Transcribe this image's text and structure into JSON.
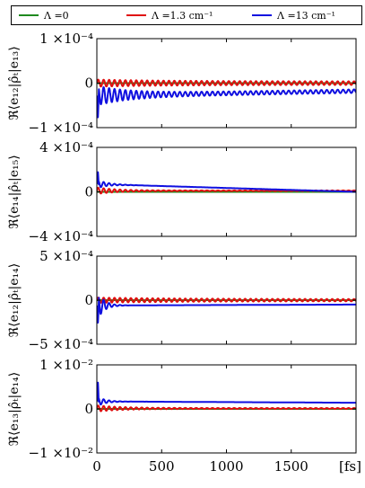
{
  "chart_data": {
    "type": "line",
    "x_unit": "[fs]",
    "xlim": [
      0,
      2000
    ],
    "x_ticks": [
      "0",
      "500",
      "1000",
      "1500"
    ],
    "x_tick_values": [
      0,
      500,
      1000,
      1500
    ],
    "legend": {
      "placement": "top",
      "entries": [
        {
          "label": "Λ =0",
          "color": "#1f8a1f"
        },
        {
          "label": "Λ =1.3 cm⁻¹",
          "color": "#e01010"
        },
        {
          "label": "Λ =13 cm⁻¹",
          "color": "#1010e0"
        }
      ]
    },
    "panels": [
      {
        "ylabel": "ℜ⟨e₁₂|ρ̂ₜ|e₁₃⟩",
        "ylim": [
          -0.0001,
          0.0001
        ],
        "y_ticks": [
          "1 ×10⁻⁴",
          "0",
          "−1 ×10⁻⁴"
        ],
        "y_tick_values": [
          0.0001,
          0,
          -0.0001
        ],
        "series": [
          {
            "name": "Λ =0",
            "x": [
              0,
              2000
            ],
            "y": [
              0,
              0
            ]
          },
          {
            "name": "Λ =1.3 cm⁻¹",
            "osc": {
              "base": 0,
              "amp0": 8e-06,
              "amp_end": 4e-06,
              "tau": 600,
              "period": 42
            }
          },
          {
            "name": "Λ =13 cm⁻¹",
            "osc": {
              "base_start": -2.8e-05,
              "base_end": -1.8e-05,
              "amp0": 2.2e-05,
              "amp_end": 4e-06,
              "tau": 250,
              "period": 42,
              "spike": -5e-05
            }
          }
        ]
      },
      {
        "ylabel": "ℜ⟨e₁₄|ρ̂ₜ|e₁₅⟩",
        "ylim": [
          -0.0004,
          0.0004
        ],
        "y_ticks": [
          "4 ×10⁻⁴",
          "0",
          "−4 ×10⁻⁴"
        ],
        "y_tick_values": [
          0.0004,
          0,
          -0.0004
        ],
        "series": [
          {
            "name": "Λ =0",
            "x": [
              0,
              2000
            ],
            "y": [
              0,
              0
            ]
          },
          {
            "name": "Λ =1.3 cm⁻¹",
            "osc": {
              "base": 1e-05,
              "amp0": 3e-05,
              "amp_end": 3e-06,
              "tau": 150,
              "period": 42
            }
          },
          {
            "name": "Λ =13 cm⁻¹",
            "osc": {
              "base_start": 7e-05,
              "base_end": 0.0,
              "amp0": 4e-05,
              "amp_end": 0.0,
              "tau": 80,
              "period": 42,
              "spike": 0.00011
            }
          }
        ]
      },
      {
        "ylabel": "ℜ⟨e₁₂|ρ̂ₜ|e₁₄⟩",
        "ylim": [
          -0.0005,
          0.0005
        ],
        "y_ticks": [
          "5 ×10⁻⁴",
          "0",
          "−5 ×10⁻⁴"
        ],
        "y_tick_values": [
          0.0005,
          0,
          -0.0005
        ],
        "series": [
          {
            "name": "Λ =0",
            "x": [
              0,
              2000
            ],
            "y": [
              0,
              0
            ]
          },
          {
            "name": "Λ =1.3 cm⁻¹",
            "osc": {
              "base": 0,
              "amp0": 3e-05,
              "amp_end": 1.2e-05,
              "tau": 700,
              "period": 42
            }
          },
          {
            "name": "Λ =13 cm⁻¹",
            "osc": {
              "base_start": -6e-05,
              "base_end": -5e-05,
              "amp0": 0.00018,
              "amp_end": 0.0,
              "tau": 50,
              "period": 42,
              "spike": -0.0002
            }
          }
        ]
      },
      {
        "ylabel": "ℜ⟨e₁₃|ρ̂ₜ|e₁₄⟩",
        "ylim": [
          -0.01,
          0.01
        ],
        "y_ticks": [
          "1 ×10⁻²",
          "0",
          "−1 ×10⁻²"
        ],
        "y_tick_values": [
          0.01,
          0,
          -0.01
        ],
        "series": [
          {
            "name": "Λ =0",
            "x": [
              0,
              2000
            ],
            "y": [
              0,
              0
            ]
          },
          {
            "name": "Λ =1.3 cm⁻¹",
            "osc": {
              "base": 0.0001,
              "amp0": 0.0007,
              "amp_end": 0.0001,
              "tau": 200,
              "period": 42
            }
          },
          {
            "name": "Λ =13 cm⁻¹",
            "osc": {
              "base_start": 0.0017,
              "base_end": 0.0014,
              "amp0": 0.0012,
              "amp_end": 0.0,
              "tau": 60,
              "period": 42,
              "spike": 0.0044
            }
          }
        ]
      }
    ]
  }
}
